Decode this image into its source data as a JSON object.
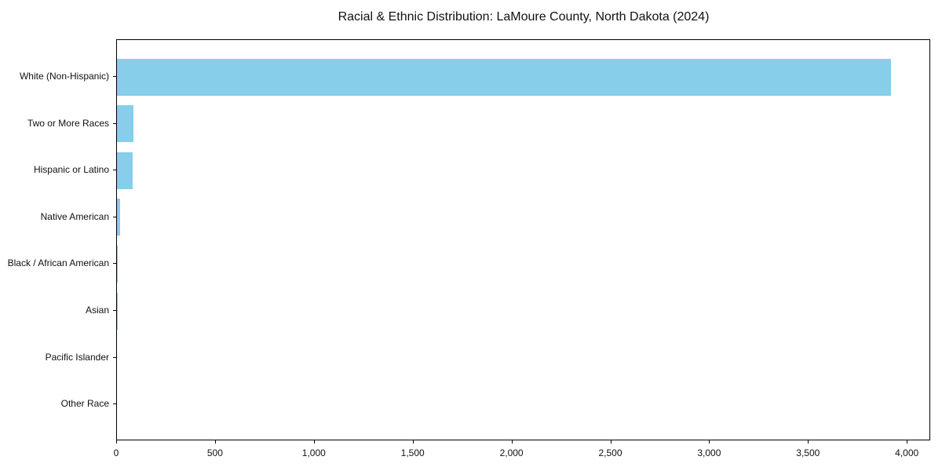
{
  "chart_data": {
    "type": "bar",
    "orientation": "horizontal",
    "title": "Racial & Ethnic Distribution: LaMoure County, North Dakota (2024)",
    "xlabel": "",
    "ylabel": "",
    "categories": [
      "White (Non-Hispanic)",
      "Two or More Races",
      "Hispanic or Latino",
      "Native American",
      "Black / African American",
      "Asian",
      "Pacific Islander",
      "Other Race"
    ],
    "values": [
      3917,
      82,
      78,
      17,
      4,
      3,
      0,
      0
    ],
    "xlim": [
      0,
      4120
    ],
    "xticks": [
      0,
      500,
      1000,
      1500,
      2000,
      2500,
      3000,
      3500,
      4000
    ],
    "xtick_labels": [
      "0",
      "500",
      "1,000",
      "1,500",
      "2,000",
      "2,500",
      "3,000",
      "3,500",
      "4,000"
    ],
    "bar_color": "#87ceeb",
    "grid": false,
    "legend": null
  }
}
